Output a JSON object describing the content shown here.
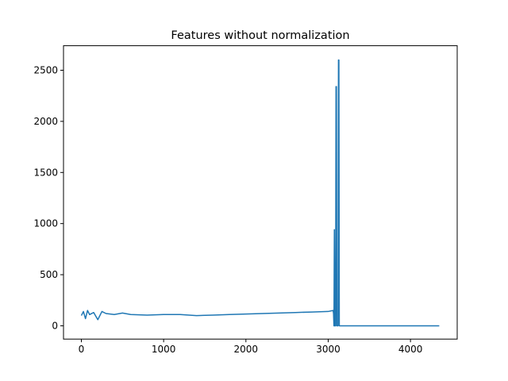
{
  "chart_data": {
    "type": "line",
    "title": "Features without normalization",
    "xlabel": "",
    "ylabel": "",
    "xlim": [
      -217,
      4568
    ],
    "ylim": [
      -130,
      2740
    ],
    "xticks": [
      0,
      1000,
      2000,
      3000,
      4000
    ],
    "yticks": [
      0,
      500,
      1000,
      1500,
      2000,
      2500
    ],
    "grid": false,
    "legend": "none",
    "colors": {
      "series": "#1f77b4",
      "axes": "#000000",
      "background": "#ffffff"
    },
    "series": [
      {
        "x": [
          0,
          25,
          50,
          75,
          100,
          150,
          200,
          250,
          300,
          400,
          500,
          600,
          800,
          1000,
          1200,
          1400,
          1600,
          1800,
          2000,
          2200,
          2400,
          2600,
          2800,
          3000,
          3060,
          3065,
          3070,
          3075,
          3080,
          3085,
          3090,
          3095,
          3100,
          3105,
          3110,
          3115,
          3120,
          3125,
          3130,
          3135,
          3140,
          3145,
          3150,
          3155,
          3160,
          3200,
          4350
        ],
        "y": [
          100,
          140,
          70,
          150,
          110,
          130,
          60,
          140,
          120,
          110,
          125,
          110,
          105,
          110,
          110,
          100,
          105,
          110,
          115,
          120,
          125,
          130,
          135,
          140,
          150,
          120,
          0,
          940,
          0,
          500,
          0,
          2340,
          2340,
          0,
          0,
          0,
          0,
          2600,
          2600,
          0,
          0,
          0,
          0,
          0,
          0,
          0,
          0
        ]
      }
    ]
  }
}
